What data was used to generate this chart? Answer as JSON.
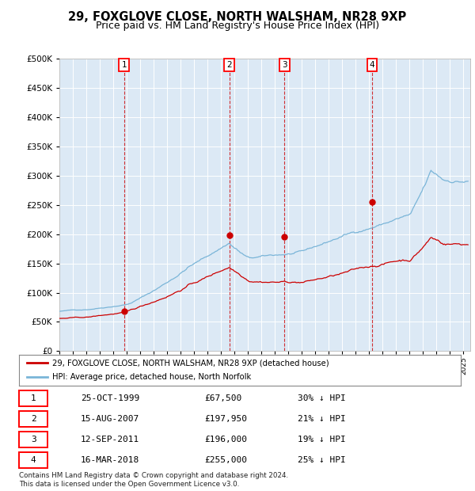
{
  "title": "29, FOXGLOVE CLOSE, NORTH WALSHAM, NR28 9XP",
  "subtitle": "Price paid vs. HM Land Registry's House Price Index (HPI)",
  "plot_bg_color": "#dce9f5",
  "ylim": [
    0,
    500000
  ],
  "yticks": [
    0,
    50000,
    100000,
    150000,
    200000,
    250000,
    300000,
    350000,
    400000,
    450000,
    500000
  ],
  "xlim_start": 1995.0,
  "xlim_end": 2025.5,
  "sale_dates": [
    1999.81,
    2007.62,
    2011.7,
    2018.21
  ],
  "sale_prices": [
    67500,
    197950,
    196000,
    255000
  ],
  "sale_labels": [
    "1",
    "2",
    "3",
    "4"
  ],
  "legend_line1": "29, FOXGLOVE CLOSE, NORTH WALSHAM, NR28 9XP (detached house)",
  "legend_line2": "HPI: Average price, detached house, North Norfolk",
  "table_data": [
    [
      "1",
      "25-OCT-1999",
      "£67,500",
      "30% ↓ HPI"
    ],
    [
      "2",
      "15-AUG-2007",
      "£197,950",
      "21% ↓ HPI"
    ],
    [
      "3",
      "12-SEP-2011",
      "£196,000",
      "19% ↓ HPI"
    ],
    [
      "4",
      "16-MAR-2018",
      "£255,000",
      "25% ↓ HPI"
    ]
  ],
  "footer": "Contains HM Land Registry data © Crown copyright and database right 2024.\nThis data is licensed under the Open Government Licence v3.0.",
  "hpi_color": "#7ab5d8",
  "sale_color": "#cc0000",
  "grid_color": "#ffffff",
  "title_fontsize": 10.5,
  "subtitle_fontsize": 9
}
